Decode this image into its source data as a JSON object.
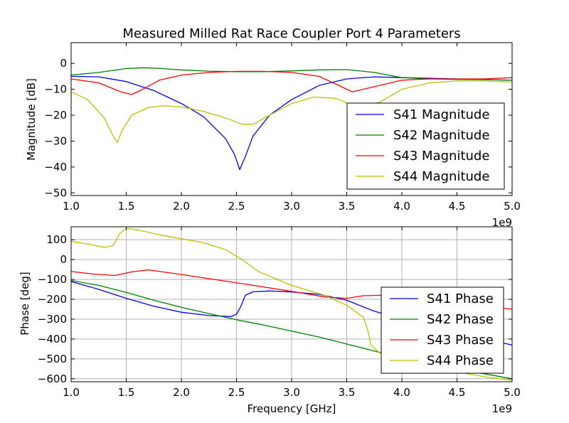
{
  "chart_data": [
    {
      "type": "line",
      "title": "Measured Milled Rat Race Coupler Port 4 Parameters",
      "xlabel": "",
      "ylabel": "Magnitude [dB]",
      "xlim": [
        1.0,
        5.0
      ],
      "ylim": [
        -51,
        8
      ],
      "x_offset_label": "1e9",
      "grid": false,
      "legend_position": "right",
      "xticks": [
        "1.0",
        "1.5",
        "2.0",
        "2.5",
        "3.0",
        "3.5",
        "4.0",
        "4.5",
        "5.0"
      ],
      "xtick_values": [
        1.0,
        1.5,
        2.0,
        2.5,
        3.0,
        3.5,
        4.0,
        4.5,
        5.0
      ],
      "yticks": [
        "0",
        "−10",
        "−20",
        "−30",
        "−40",
        "−50"
      ],
      "ytick_values": [
        0,
        -10,
        -20,
        -30,
        -40,
        -50
      ],
      "series": [
        {
          "name": "S41 Magnitude",
          "color": "#0000ff",
          "x": [
            1.0,
            1.25,
            1.5,
            1.75,
            2.0,
            2.2,
            2.4,
            2.48,
            2.53,
            2.58,
            2.65,
            2.8,
            3.0,
            3.25,
            3.5,
            3.75,
            4.0,
            4.5,
            5.0
          ],
          "y": [
            -5,
            -5.2,
            -7,
            -10.5,
            -15.5,
            -20.5,
            -29,
            -35,
            -41,
            -36,
            -28,
            -20,
            -14,
            -8.5,
            -6,
            -5.2,
            -5.5,
            -6,
            -6.5
          ]
        },
        {
          "name": "S42 Magnitude",
          "color": "#008000",
          "x": [
            1.0,
            1.25,
            1.5,
            1.65,
            1.8,
            2.0,
            2.25,
            2.5,
            2.75,
            3.0,
            3.25,
            3.5,
            3.75,
            4.0,
            4.25,
            4.5,
            4.75,
            5.0
          ],
          "y": [
            -4.5,
            -3.5,
            -2,
            -1.7,
            -1.9,
            -2.5,
            -3,
            -3.2,
            -3.2,
            -2.9,
            -2.5,
            -2.4,
            -3.5,
            -5.5,
            -6,
            -6.2,
            -6.3,
            -6.5
          ]
        },
        {
          "name": "S43 Magnitude",
          "color": "#ff0000",
          "x": [
            1.0,
            1.25,
            1.45,
            1.55,
            1.65,
            1.8,
            2.0,
            2.25,
            2.5,
            2.75,
            3.0,
            3.25,
            3.45,
            3.55,
            3.7,
            4.0,
            4.25,
            4.5,
            4.75,
            5.0
          ],
          "y": [
            -6,
            -7.5,
            -11,
            -12,
            -10,
            -6.5,
            -4.5,
            -3.5,
            -3.1,
            -3.1,
            -3.5,
            -5,
            -9,
            -11,
            -9.5,
            -6.5,
            -6,
            -6,
            -6,
            -5.5
          ]
        },
        {
          "name": "S44 Magnitude",
          "color": "#bfbf00",
          "x": [
            1.0,
            1.15,
            1.3,
            1.38,
            1.42,
            1.46,
            1.55,
            1.7,
            1.85,
            2.0,
            2.2,
            2.4,
            2.55,
            2.65,
            2.8,
            3.0,
            3.2,
            3.4,
            3.6,
            3.8,
            4.0,
            4.25,
            4.5,
            4.75,
            5.0
          ],
          "y": [
            -11,
            -14,
            -21,
            -28,
            -30.5,
            -26,
            -20,
            -17,
            -16.3,
            -16.8,
            -18.5,
            -21,
            -23.5,
            -23.5,
            -20,
            -15.5,
            -13,
            -13.5,
            -17,
            -15,
            -10,
            -7.5,
            -6.8,
            -6.8,
            -7.2
          ]
        }
      ]
    },
    {
      "type": "line",
      "title": "",
      "xlabel": "Frequency [GHz]",
      "ylabel": "Phase [deg]",
      "xlim": [
        1.0,
        5.0
      ],
      "ylim": [
        -615,
        165
      ],
      "x_offset_label": "1e9",
      "grid": true,
      "legend_position": "lower right",
      "xticks": [
        "1.0",
        "1.5",
        "2.0",
        "2.5",
        "3.0",
        "3.5",
        "4.0",
        "4.5",
        "5.0"
      ],
      "xtick_values": [
        1.0,
        1.5,
        2.0,
        2.5,
        3.0,
        3.5,
        4.0,
        4.5,
        5.0
      ],
      "yticks": [
        "100",
        "0",
        "−100",
        "−200",
        "−300",
        "−400",
        "−500",
        "−600"
      ],
      "ytick_values": [
        100,
        0,
        -100,
        -200,
        -300,
        -400,
        -500,
        -600
      ],
      "series": [
        {
          "name": "S41 Phase",
          "color": "#0000ff",
          "x": [
            1.0,
            1.25,
            1.5,
            1.75,
            2.0,
            2.25,
            2.45,
            2.5,
            2.54,
            2.58,
            2.65,
            2.8,
            3.0,
            3.25,
            3.5,
            3.75,
            4.0,
            4.25,
            4.5,
            4.75,
            5.0
          ],
          "y": [
            -110,
            -150,
            -195,
            -235,
            -265,
            -282,
            -287,
            -275,
            -235,
            -180,
            -162,
            -158,
            -163,
            -175,
            -205,
            -260,
            -300,
            -335,
            -365,
            -400,
            -430
          ]
        },
        {
          "name": "S42 Phase",
          "color": "#008000",
          "x": [
            1.0,
            1.25,
            1.5,
            1.75,
            2.0,
            2.25,
            2.5,
            2.75,
            3.0,
            3.25,
            3.5,
            3.75,
            4.0,
            4.25,
            4.5,
            4.75,
            5.0
          ],
          "y": [
            -105,
            -130,
            -165,
            -205,
            -240,
            -272,
            -303,
            -330,
            -360,
            -390,
            -425,
            -460,
            -495,
            -520,
            -548,
            -575,
            -600
          ]
        },
        {
          "name": "S43 Phase",
          "color": "#ff0000",
          "x": [
            1.0,
            1.2,
            1.4,
            1.55,
            1.7,
            2.0,
            2.3,
            2.6,
            3.0,
            3.3,
            3.5,
            3.65,
            3.8,
            4.0,
            4.25,
            4.5,
            4.75,
            5.0
          ],
          "y": [
            -60,
            -73,
            -80,
            -62,
            -52,
            -75,
            -100,
            -125,
            -160,
            -188,
            -195,
            -182,
            -180,
            -190,
            -205,
            -220,
            -235,
            -250
          ]
        },
        {
          "name": "S44 Phase",
          "color": "#bfbf00",
          "x": [
            1.0,
            1.15,
            1.3,
            1.38,
            1.44,
            1.5,
            1.6,
            1.8,
            2.0,
            2.2,
            2.4,
            2.55,
            2.7,
            3.0,
            3.3,
            3.5,
            3.65,
            3.69,
            3.72,
            3.8,
            4.0,
            4.25,
            4.5,
            4.75,
            5.0
          ],
          "y": [
            92,
            78,
            62,
            70,
            130,
            158,
            150,
            125,
            105,
            85,
            50,
            0,
            -60,
            -130,
            -180,
            -230,
            -290,
            -355,
            -430,
            -470,
            -505,
            -540,
            -565,
            -590,
            -608
          ]
        }
      ]
    }
  ]
}
